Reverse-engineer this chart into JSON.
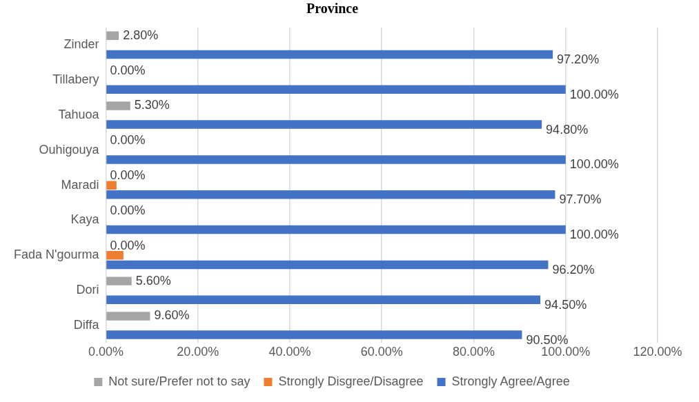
{
  "chart_data": {
    "type": "bar",
    "orientation": "horizontal",
    "title": "Province",
    "categories": [
      "Zinder",
      "Tillabery",
      "Tahuoa",
      "Ouhigouya",
      "Maradi",
      "Kaya",
      "Fada N'gourma",
      "Dori",
      "Diffa"
    ],
    "series": [
      {
        "name": "Not sure/Prefer not to say",
        "color": "#a5a5a5",
        "values": [
          2.8,
          0,
          5.3,
          0,
          0,
          0,
          0,
          5.6,
          9.6
        ],
        "value_labels": [
          "2.80%",
          "0.00%",
          "5.30%",
          "0.00%",
          "0.00%",
          "0.00%",
          "0.00%",
          "5.60%",
          "9.60%"
        ]
      },
      {
        "name": "Strongly Disgree/Disagree",
        "color": "#ed7d31",
        "values": [
          0,
          0,
          0,
          0,
          2.3,
          0,
          3.8,
          0,
          0
        ]
      },
      {
        "name": "Strongly Agree/Agree",
        "color": "#4472c4",
        "values": [
          97.2,
          100,
          94.8,
          100,
          97.7,
          100,
          96.2,
          94.5,
          90.5
        ],
        "value_labels": [
          "97.20%",
          "100.00%",
          "94.80%",
          "100.00%",
          "97.70%",
          "100.00%",
          "96.20%",
          "94.50%",
          "90.50%"
        ]
      }
    ],
    "xlim": [
      0,
      120
    ],
    "xticks": [
      {
        "value": 0,
        "label": "0.00%"
      },
      {
        "value": 20,
        "label": "20.00%"
      },
      {
        "value": 40,
        "label": "40.00%"
      },
      {
        "value": 60,
        "label": "60.00%"
      },
      {
        "value": 80,
        "label": "80.00%"
      },
      {
        "value": 100,
        "label": "100.00%"
      },
      {
        "value": 120,
        "label": "120.00%"
      }
    ],
    "grid": "x",
    "legend": "bottom"
  }
}
